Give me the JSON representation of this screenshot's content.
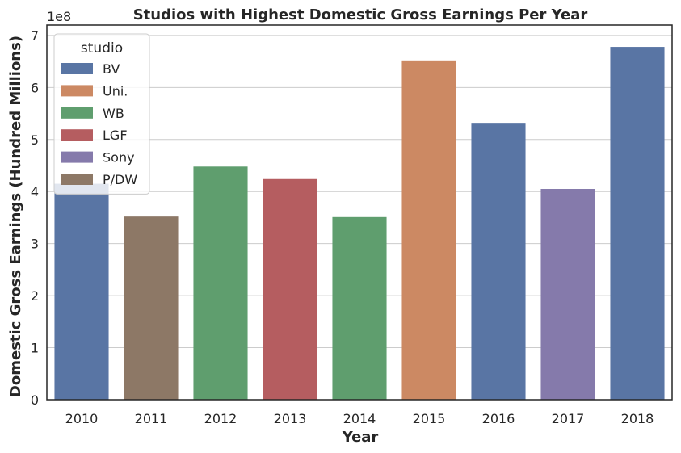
{
  "chart_data": {
    "type": "bar",
    "title": "Studios with Highest Domestic Gross Earnings Per Year",
    "xlabel": "Year",
    "ylabel": "Domestic Gross Earnings (Hundred Millions)",
    "y_offset_text": "1e8",
    "ylim": [
      0,
      7.2
    ],
    "yticks": [
      "0",
      "1",
      "2",
      "3",
      "4",
      "5",
      "6",
      "7"
    ],
    "grid": true,
    "legend_placement": "top-left",
    "legend_title": "studio",
    "categories": [
      "2010",
      "2011",
      "2012",
      "2013",
      "2014",
      "2015",
      "2016",
      "2017",
      "2018"
    ],
    "values": [
      4.15,
      3.52,
      4.48,
      4.24,
      3.51,
      6.52,
      5.32,
      4.05,
      6.78
    ],
    "studios": [
      "BV",
      "P/DW",
      "WB",
      "LGF",
      "WB",
      "Uni.",
      "BV",
      "Sony",
      "BV"
    ],
    "legend": [
      {
        "name": "BV",
        "color": "#5975a4"
      },
      {
        "name": "Uni.",
        "color": "#cc8963"
      },
      {
        "name": "WB",
        "color": "#5f9e6e"
      },
      {
        "name": "LGF",
        "color": "#b55d60"
      },
      {
        "name": "Sony",
        "color": "#857aab"
      },
      {
        "name": "P/DW",
        "color": "#8d7866"
      }
    ]
  }
}
